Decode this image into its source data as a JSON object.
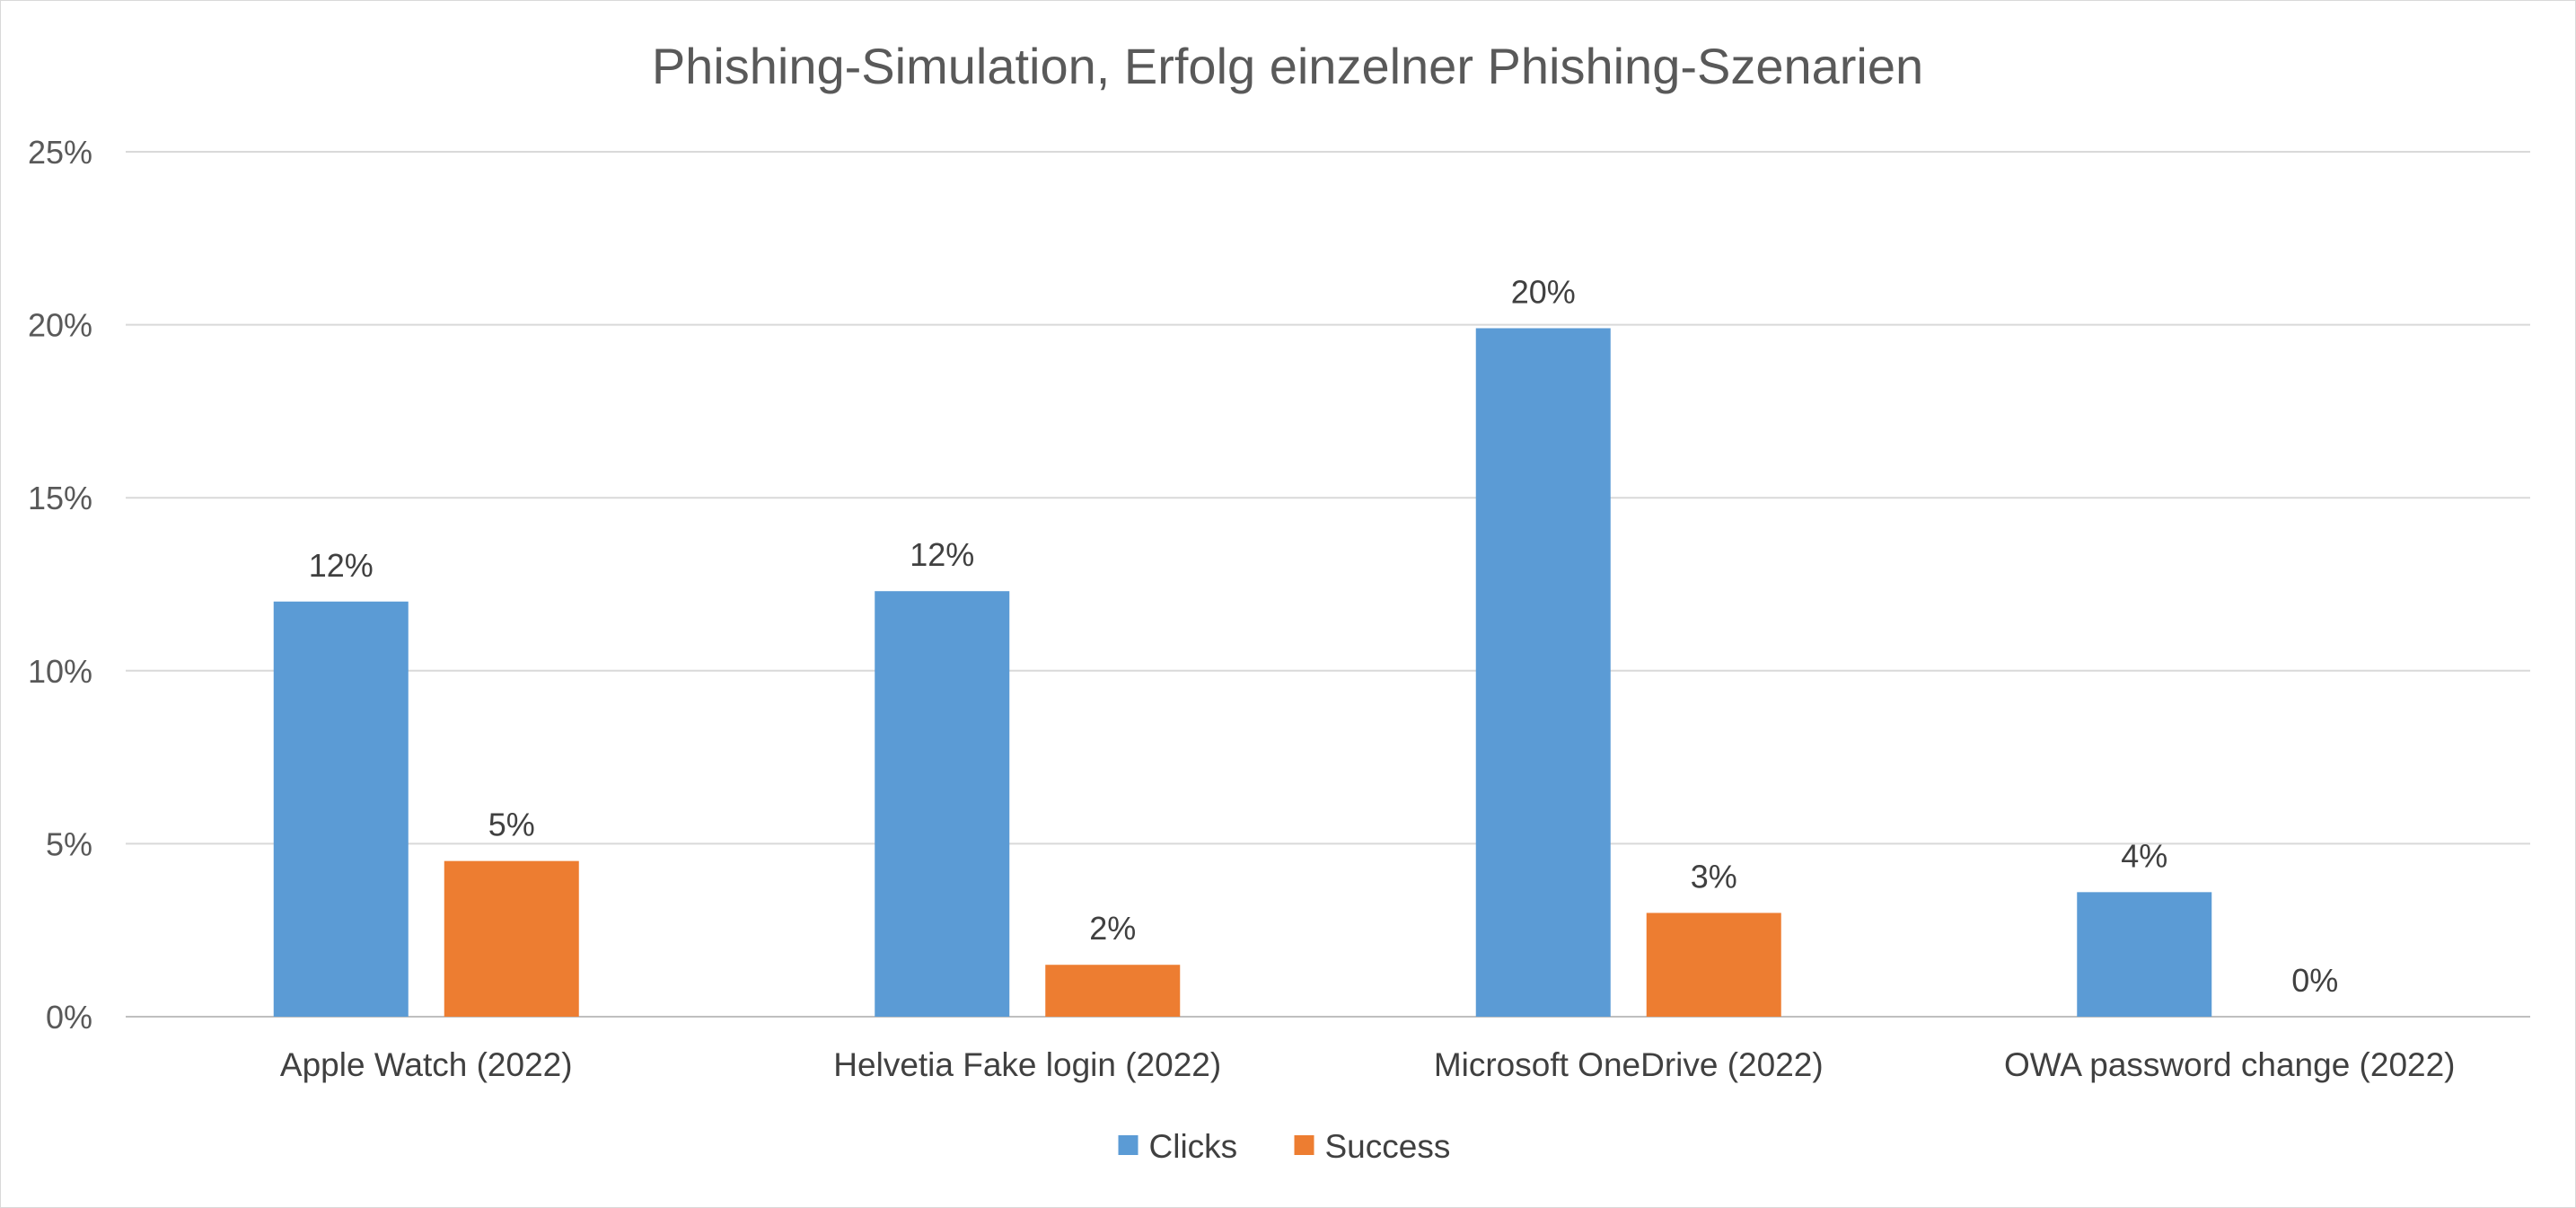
{
  "chart_data": {
    "type": "bar",
    "title": "Phishing-Simulation, Erfolg einzelner Phishing-Szenarien",
    "categories": [
      "Apple Watch (2022)",
      "Helvetia Fake login (2022)",
      "Microsoft OneDrive (2022)",
      "OWA password change (2022)"
    ],
    "series": [
      {
        "name": "Clicks",
        "color": "#5b9bd5",
        "values": [
          0.12,
          0.123,
          0.199,
          0.036
        ],
        "labels": [
          "12%",
          "12%",
          "20%",
          "4%"
        ]
      },
      {
        "name": "Success",
        "color": "#ed7d31",
        "values": [
          0.045,
          0.015,
          0.03,
          0.0
        ],
        "labels": [
          "5%",
          "2%",
          "3%",
          "0%"
        ]
      }
    ],
    "ylim": [
      0,
      0.25
    ],
    "yticks": [
      0,
      0.05,
      0.1,
      0.15,
      0.2,
      0.25
    ],
    "ytick_labels": [
      "0%",
      "5%",
      "10%",
      "15%",
      "20%",
      "25%"
    ],
    "grid": true,
    "legend_position": "bottom",
    "xlabel": "",
    "ylabel": ""
  }
}
